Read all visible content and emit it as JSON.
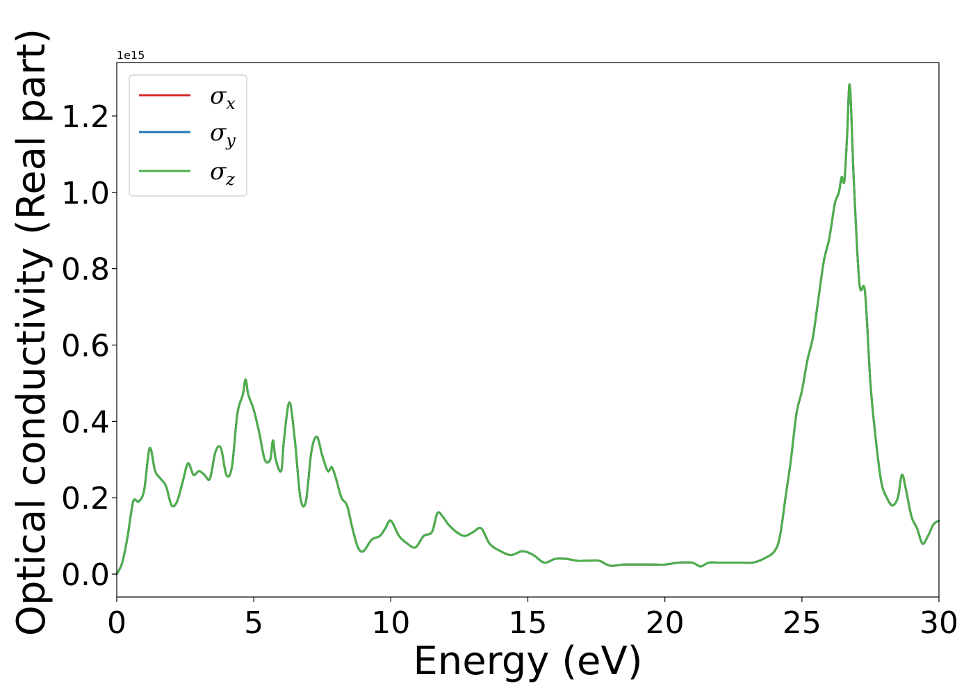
{
  "chart_data": {
    "type": "line",
    "xlabel": "Energy (eV)",
    "ylabel": "Optical conductivity (Real part)",
    "y_offset_text": "1e15",
    "xlim": [
      0,
      30
    ],
    "ylim": [
      -0.06,
      1.34
    ],
    "x_ticks": [
      0,
      5,
      10,
      15,
      20,
      25,
      30
    ],
    "x_tick_labels": [
      "0",
      "5",
      "10",
      "15",
      "20",
      "25",
      "30"
    ],
    "y_ticks": [
      0.0,
      0.2,
      0.4,
      0.6,
      0.8,
      1.0,
      1.2
    ],
    "y_tick_labels": [
      "0.0",
      "0.2",
      "0.4",
      "0.6",
      "0.8",
      "1.0",
      "1.2"
    ],
    "grid": false,
    "legend_position": "top-left",
    "y_unit_multiplier": 1000000000000000.0,
    "x": [
      0,
      0.2,
      0.4,
      0.6,
      0.8,
      1.0,
      1.2,
      1.4,
      1.6,
      1.8,
      2.0,
      2.2,
      2.4,
      2.6,
      2.8,
      3.0,
      3.2,
      3.4,
      3.6,
      3.8,
      4.0,
      4.2,
      4.4,
      4.6,
      4.7,
      4.8,
      5.0,
      5.2,
      5.4,
      5.6,
      5.7,
      5.8,
      6.0,
      6.1,
      6.3,
      6.5,
      6.7,
      6.9,
      7.1,
      7.3,
      7.5,
      7.7,
      7.85,
      8.0,
      8.2,
      8.4,
      8.6,
      8.8,
      9.0,
      9.3,
      9.6,
      9.8,
      10.0,
      10.3,
      10.6,
      10.9,
      11.2,
      11.5,
      11.7,
      11.9,
      12.1,
      12.4,
      12.7,
      13.0,
      13.3,
      13.6,
      14.0,
      14.4,
      14.8,
      15.2,
      15.6,
      16.0,
      16.4,
      16.8,
      17.2,
      17.6,
      18.0,
      18.5,
      19.0,
      19.5,
      20.0,
      20.5,
      21.0,
      21.3,
      21.6,
      22.0,
      22.4,
      22.8,
      23.2,
      23.6,
      24.0,
      24.2,
      24.4,
      24.6,
      24.8,
      25.0,
      25.2,
      25.4,
      25.6,
      25.8,
      26.0,
      26.2,
      26.35,
      26.45,
      26.55,
      26.65,
      26.75,
      26.9,
      27.1,
      27.3,
      27.5,
      27.7,
      27.9,
      28.1,
      28.3,
      28.5,
      28.65,
      28.8,
      29.0,
      29.2,
      29.4,
      29.6,
      29.8,
      30.0
    ],
    "series": [
      {
        "name": "σx",
        "color": "#d62728",
        "values": [
          0.0,
          0.03,
          0.1,
          0.19,
          0.19,
          0.22,
          0.33,
          0.27,
          0.25,
          0.23,
          0.18,
          0.19,
          0.24,
          0.29,
          0.26,
          0.27,
          0.26,
          0.25,
          0.32,
          0.33,
          0.26,
          0.28,
          0.42,
          0.47,
          0.51,
          0.47,
          0.43,
          0.37,
          0.3,
          0.3,
          0.35,
          0.3,
          0.27,
          0.35,
          0.45,
          0.35,
          0.2,
          0.19,
          0.32,
          0.36,
          0.31,
          0.27,
          0.28,
          0.25,
          0.2,
          0.18,
          0.12,
          0.07,
          0.06,
          0.09,
          0.1,
          0.12,
          0.14,
          0.1,
          0.08,
          0.07,
          0.1,
          0.11,
          0.16,
          0.15,
          0.13,
          0.11,
          0.1,
          0.11,
          0.12,
          0.08,
          0.06,
          0.05,
          0.06,
          0.05,
          0.03,
          0.04,
          0.04,
          0.035,
          0.035,
          0.035,
          0.022,
          0.025,
          0.025,
          0.025,
          0.025,
          0.03,
          0.03,
          0.02,
          0.03,
          0.03,
          0.03,
          0.03,
          0.03,
          0.04,
          0.06,
          0.1,
          0.2,
          0.3,
          0.42,
          0.48,
          0.56,
          0.62,
          0.72,
          0.82,
          0.88,
          0.97,
          1.0,
          1.04,
          1.03,
          1.15,
          1.28,
          1.02,
          0.76,
          0.74,
          0.5,
          0.35,
          0.24,
          0.2,
          0.18,
          0.2,
          0.26,
          0.22,
          0.15,
          0.12,
          0.08,
          0.1,
          0.13,
          0.14
        ]
      },
      {
        "name": "σy",
        "color": "#1f77b4",
        "values": [
          0.0,
          0.03,
          0.1,
          0.19,
          0.19,
          0.22,
          0.33,
          0.27,
          0.25,
          0.23,
          0.18,
          0.19,
          0.24,
          0.29,
          0.26,
          0.27,
          0.26,
          0.25,
          0.32,
          0.33,
          0.26,
          0.28,
          0.42,
          0.47,
          0.51,
          0.47,
          0.43,
          0.37,
          0.3,
          0.3,
          0.35,
          0.3,
          0.27,
          0.35,
          0.45,
          0.35,
          0.2,
          0.19,
          0.32,
          0.36,
          0.31,
          0.27,
          0.28,
          0.25,
          0.2,
          0.18,
          0.12,
          0.07,
          0.06,
          0.09,
          0.1,
          0.12,
          0.14,
          0.1,
          0.08,
          0.07,
          0.1,
          0.11,
          0.16,
          0.15,
          0.13,
          0.11,
          0.1,
          0.11,
          0.12,
          0.08,
          0.06,
          0.05,
          0.06,
          0.05,
          0.03,
          0.04,
          0.04,
          0.035,
          0.035,
          0.035,
          0.022,
          0.025,
          0.025,
          0.025,
          0.025,
          0.03,
          0.03,
          0.02,
          0.03,
          0.03,
          0.03,
          0.03,
          0.03,
          0.04,
          0.06,
          0.1,
          0.2,
          0.3,
          0.42,
          0.48,
          0.56,
          0.62,
          0.72,
          0.82,
          0.88,
          0.97,
          1.0,
          1.04,
          1.03,
          1.15,
          1.28,
          1.02,
          0.76,
          0.74,
          0.5,
          0.35,
          0.24,
          0.2,
          0.18,
          0.2,
          0.26,
          0.22,
          0.15,
          0.12,
          0.08,
          0.1,
          0.13,
          0.14
        ]
      },
      {
        "name": "σz",
        "color": "#4daf4a",
        "values": [
          0.0,
          0.03,
          0.1,
          0.19,
          0.19,
          0.22,
          0.33,
          0.27,
          0.25,
          0.23,
          0.18,
          0.19,
          0.24,
          0.29,
          0.26,
          0.27,
          0.26,
          0.25,
          0.32,
          0.33,
          0.26,
          0.28,
          0.42,
          0.47,
          0.51,
          0.47,
          0.43,
          0.37,
          0.3,
          0.3,
          0.35,
          0.3,
          0.27,
          0.35,
          0.45,
          0.35,
          0.2,
          0.19,
          0.32,
          0.36,
          0.31,
          0.27,
          0.28,
          0.25,
          0.2,
          0.18,
          0.12,
          0.07,
          0.06,
          0.09,
          0.1,
          0.12,
          0.14,
          0.1,
          0.08,
          0.07,
          0.1,
          0.11,
          0.16,
          0.15,
          0.13,
          0.11,
          0.1,
          0.11,
          0.12,
          0.08,
          0.06,
          0.05,
          0.06,
          0.05,
          0.03,
          0.04,
          0.04,
          0.035,
          0.035,
          0.035,
          0.022,
          0.025,
          0.025,
          0.025,
          0.025,
          0.03,
          0.03,
          0.02,
          0.03,
          0.03,
          0.03,
          0.03,
          0.03,
          0.04,
          0.06,
          0.1,
          0.2,
          0.3,
          0.42,
          0.48,
          0.56,
          0.62,
          0.72,
          0.82,
          0.88,
          0.97,
          1.0,
          1.04,
          1.03,
          1.15,
          1.28,
          1.02,
          0.76,
          0.74,
          0.5,
          0.35,
          0.24,
          0.2,
          0.18,
          0.2,
          0.26,
          0.22,
          0.15,
          0.12,
          0.08,
          0.1,
          0.13,
          0.14
        ]
      }
    ],
    "legend": [
      {
        "symbol": "σ",
        "sub": "x",
        "color": "#d62728"
      },
      {
        "symbol": "σ",
        "sub": "y",
        "color": "#1f77b4"
      },
      {
        "symbol": "σ",
        "sub": "z",
        "color": "#4daf4a"
      }
    ]
  }
}
